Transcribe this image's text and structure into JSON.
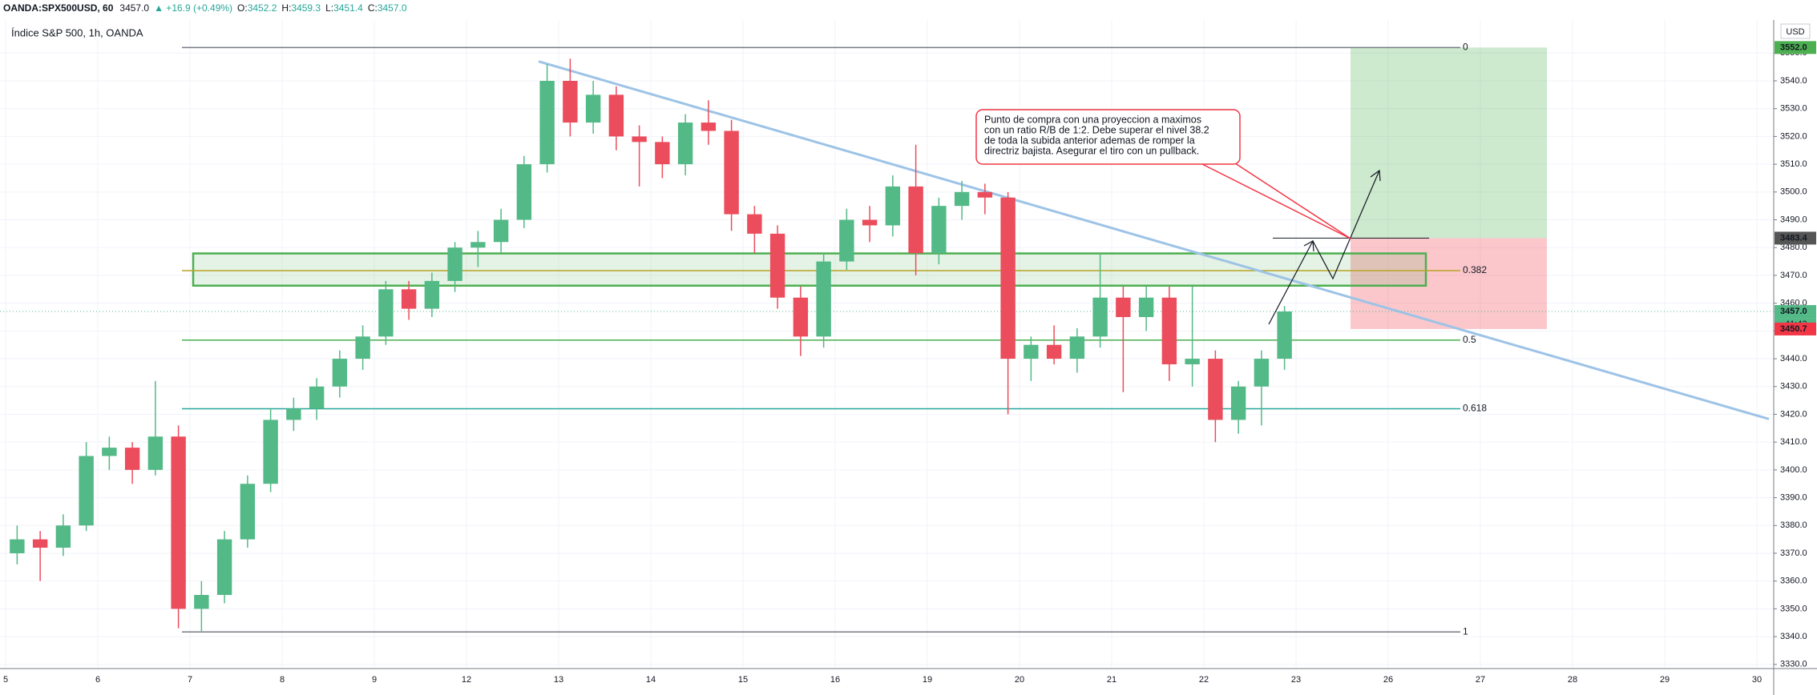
{
  "chart_data": {
    "type": "candlestick",
    "header": {
      "symbol": "OANDA:SPX500USD, 60",
      "last": "3457.0",
      "change": "▲ +16.9 (+0.49%)",
      "ohlc": [
        {
          "key": "O:",
          "value": "3452.2"
        },
        {
          "key": "H:",
          "value": "3459.3"
        },
        {
          "key": "L:",
          "value": "3451.4"
        },
        {
          "key": "C:",
          "value": "3457.0"
        }
      ]
    },
    "title": "Índice S&P 500, 1h, OANDA",
    "currency": "USD",
    "categories": [
      "5",
      "6",
      "7",
      "8",
      "9",
      "12",
      "13",
      "14",
      "15",
      "16",
      "19",
      "20",
      "21",
      "22",
      "23",
      "26",
      "27",
      "28",
      "29",
      "30"
    ],
    "candles": [
      [
        3370,
        3380,
        3366,
        3375
      ],
      [
        3375,
        3378,
        3360,
        3372
      ],
      [
        3372,
        3384,
        3369,
        3380
      ],
      [
        3380,
        3410,
        3378,
        3405
      ],
      [
        3405,
        3412,
        3400,
        3408
      ],
      [
        3408,
        3410,
        3395,
        3400
      ],
      [
        3400,
        3432,
        3398,
        3412
      ],
      [
        3412,
        3416,
        3343,
        3350
      ],
      [
        3350,
        3360,
        3342,
        3355
      ],
      [
        3355,
        3378,
        3352,
        3375
      ],
      [
        3375,
        3398,
        3372,
        3395
      ],
      [
        3395,
        3422,
        3392,
        3418
      ],
      [
        3418,
        3426,
        3414,
        3422
      ],
      [
        3422,
        3433,
        3418,
        3430
      ],
      [
        3430,
        3443,
        3426,
        3440
      ],
      [
        3440,
        3452,
        3436,
        3448
      ],
      [
        3448,
        3468,
        3445,
        3465
      ],
      [
        3465,
        3468,
        3454,
        3458
      ],
      [
        3458,
        3471,
        3455,
        3468
      ],
      [
        3468,
        3482,
        3464,
        3480
      ],
      [
        3480,
        3486,
        3473,
        3482
      ],
      [
        3482,
        3494,
        3478,
        3490
      ],
      [
        3490,
        3513,
        3487,
        3510
      ],
      [
        3510,
        3546,
        3507,
        3540
      ],
      [
        3540,
        3548,
        3520,
        3525
      ],
      [
        3525,
        3540,
        3521,
        3535
      ],
      [
        3535,
        3538,
        3515,
        3520
      ],
      [
        3520,
        3524,
        3502,
        3518
      ],
      [
        3518,
        3520,
        3505,
        3510
      ],
      [
        3510,
        3528,
        3506,
        3525
      ],
      [
        3525,
        3533,
        3517,
        3522
      ],
      [
        3522,
        3526,
        3486,
        3492
      ],
      [
        3492,
        3495,
        3478,
        3485
      ],
      [
        3485,
        3488,
        3458,
        3462
      ],
      [
        3462,
        3466,
        3441,
        3448
      ],
      [
        3448,
        3478,
        3444,
        3475
      ],
      [
        3475,
        3494,
        3472,
        3490
      ],
      [
        3490,
        3495,
        3482,
        3488
      ],
      [
        3488,
        3506,
        3484,
        3502
      ],
      [
        3502,
        3517,
        3470,
        3478
      ],
      [
        3478,
        3498,
        3474,
        3495
      ],
      [
        3495,
        3504,
        3490,
        3500
      ],
      [
        3500,
        3503,
        3492,
        3498
      ],
      [
        3498,
        3500,
        3420,
        3440
      ],
      [
        3440,
        3448,
        3432,
        3445
      ],
      [
        3445,
        3452,
        3438,
        3440
      ],
      [
        3440,
        3451,
        3435,
        3448
      ],
      [
        3448,
        3478,
        3444,
        3462
      ],
      [
        3462,
        3466,
        3428,
        3455
      ],
      [
        3455,
        3466,
        3450,
        3462
      ],
      [
        3462,
        3466,
        3432,
        3438
      ],
      [
        3438,
        3466,
        3430,
        3440
      ],
      [
        3440,
        3443,
        3410,
        3418
      ],
      [
        3418,
        3432,
        3413,
        3430
      ],
      [
        3430,
        3443,
        3416,
        3440
      ],
      [
        3440,
        3459,
        3436,
        3457
      ]
    ],
    "up_color": "#53b987",
    "down_color": "#eb4d5c",
    "ylim": [
      3328.5,
      3561.9
    ],
    "yticks": [
      {
        "value": 3330,
        "label": "3330.0"
      },
      {
        "value": 3340,
        "label": "3340.0"
      },
      {
        "value": 3350,
        "label": "3350.0"
      },
      {
        "value": 3360,
        "label": "3360.0"
      },
      {
        "value": 3370,
        "label": "3370.0"
      },
      {
        "value": 3380,
        "label": "3380.0"
      },
      {
        "value": 3390,
        "label": "3390.0"
      },
      {
        "value": 3400,
        "label": "3400.0"
      },
      {
        "value": 3410,
        "label": "3410.0"
      },
      {
        "value": 3420,
        "label": "3420.0"
      },
      {
        "value": 3430,
        "label": "3430.0"
      },
      {
        "value": 3440,
        "label": "3440.0"
      },
      {
        "value": 3450,
        "label": "3450.0"
      },
      {
        "value": 3460,
        "label": "3460.0"
      },
      {
        "value": 3470,
        "label": "3470.0"
      },
      {
        "value": 3480,
        "label": "3480.0"
      },
      {
        "value": 3490,
        "label": "3490.0"
      },
      {
        "value": 3500,
        "label": "3500.0"
      },
      {
        "value": 3510,
        "label": "3510.0"
      },
      {
        "value": 3520,
        "label": "3520.0"
      },
      {
        "value": 3530,
        "label": "3530.0"
      },
      {
        "value": 3540,
        "label": "3540.0"
      },
      {
        "value": 3550,
        "label": "3550.0"
      }
    ],
    "grid": true,
    "fib_levels": [
      {
        "level": 0,
        "price": 3552,
        "color": "#787b86"
      },
      {
        "level": 0.382,
        "price": 3471.7,
        "color": "#b8a326"
      },
      {
        "level": 0.5,
        "price": 3446.7,
        "color": "#4caf50"
      },
      {
        "level": 0.618,
        "price": 3422,
        "color": "#26a69a"
      },
      {
        "level": 1,
        "price": 3341.7,
        "color": "#787b86"
      }
    ],
    "zone": {
      "top": 3477.9,
      "bottom": 3466.3,
      "color": "#4caf50"
    },
    "trendline": {
      "start": 3547,
      "end": 3418.3,
      "color": "#9dc3e6"
    },
    "position": {
      "target": 3552,
      "entry": 3483.4,
      "stop": 3450.7
    },
    "price_tags": [
      {
        "value": 3552,
        "label": "3552.0",
        "color": "#4caf50"
      },
      {
        "value": 3483.4,
        "label": "3483.4",
        "color": "#555555"
      },
      {
        "value": 3457,
        "label": "3457.0",
        "color": "#53b987"
      },
      {
        "value": 3450.7,
        "label": "3450.7",
        "color": "#f23645"
      }
    ],
    "countdown": "41:43",
    "note": [
      "Punto de compra con una proyeccion a maximos",
      "con un ratio R/B de 1:2. Debe superar el nivel 38.2",
      "de toda la subida anterior ademas de romper la",
      "directriz bajista. Asegurar el tiro con un pullback."
    ]
  }
}
